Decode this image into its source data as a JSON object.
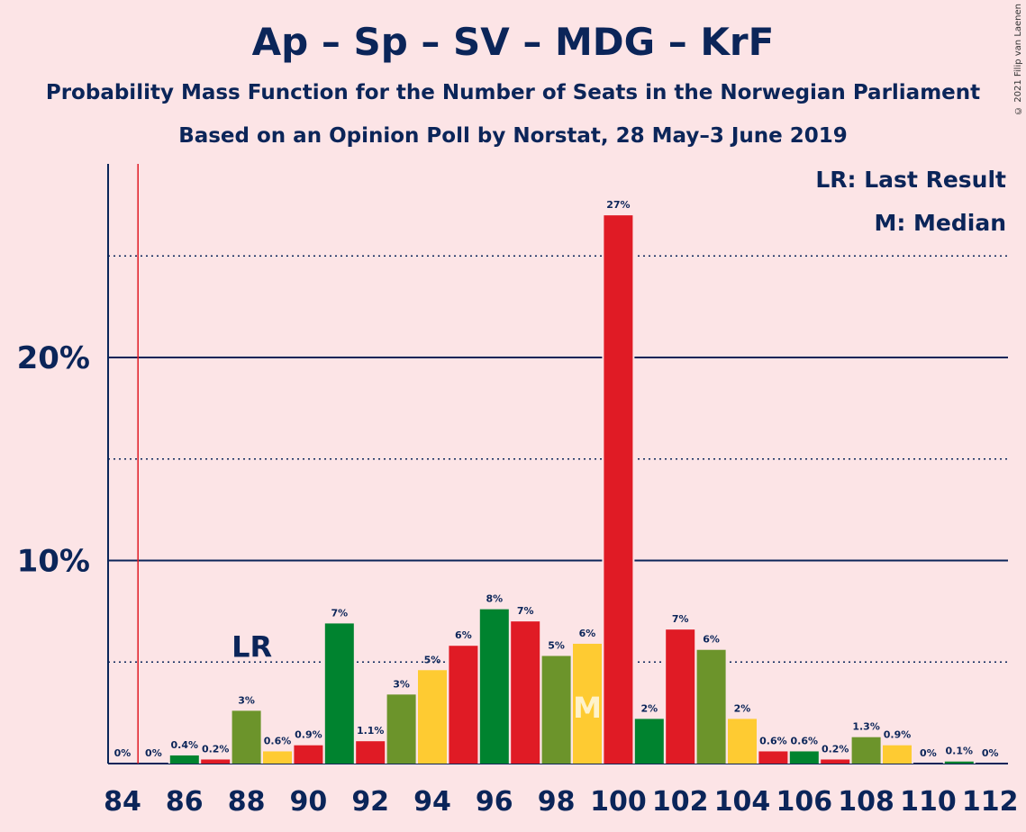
{
  "title": "Ap – Sp – SV – MDG – KrF",
  "subtitle": "Probability Mass Function for the Number of Seats in the Norwegian Parliament",
  "subtitle2": "Based on an Opinion Poll by Norstat, 28 May–3 June 2019",
  "copyright": "© 2021 Filip van Laenen",
  "legend": {
    "last_result": "LR: Last Result",
    "median": "M: Median"
  },
  "markers": {
    "last_result_label": "LR",
    "last_result_seat": 88,
    "median_label": "M",
    "median_seat": 99,
    "majority_line_seat": 84.5
  },
  "colors": {
    "Ap": "#e01b25",
    "Sp": "#00832f",
    "SV": "#6c942b",
    "MDG_KrF": "#fecb32",
    "axis": "#0b2559",
    "majority_line": "#e01b25",
    "background": "#fce4e6"
  },
  "chart_data": {
    "type": "bar",
    "x": [
      84,
      85,
      86,
      87,
      88,
      89,
      90,
      91,
      92,
      93,
      94,
      95,
      96,
      97,
      98,
      99,
      100,
      101,
      102,
      103,
      104,
      105,
      106,
      107,
      108,
      109,
      110,
      111,
      112
    ],
    "values": [
      0,
      0,
      0.4,
      0.2,
      2.6,
      0.6,
      0.9,
      6.9,
      1.1,
      3.4,
      4.6,
      5.8,
      7.6,
      7.0,
      5.3,
      5.9,
      27.0,
      2.2,
      6.6,
      5.6,
      2.2,
      0.6,
      0.6,
      0.2,
      1.3,
      0.9,
      0,
      0.1,
      0
    ],
    "labels": [
      "0%",
      "0%",
      "0.4%",
      "0.2%",
      "3%",
      "0.6%",
      "0.9%",
      "7%",
      "1.1%",
      "3%",
      "5%",
      "6%",
      "8%",
      "7%",
      "5%",
      "6%",
      "27%",
      "2%",
      "7%",
      "6%",
      "2%",
      "0.6%",
      "0.6%",
      "0.2%",
      "1.3%",
      "0.9%",
      "0%",
      "0.1%",
      "0%"
    ],
    "bar_colors": [
      "Ap",
      "Ap",
      "Sp",
      "Ap",
      "SV",
      "MDG_KrF",
      "Ap",
      "Sp",
      "Ap",
      "SV",
      "MDG_KrF",
      "Ap",
      "Sp",
      "Ap",
      "SV",
      "MDG_KrF",
      "Ap",
      "Sp",
      "Ap",
      "SV",
      "MDG_KrF",
      "Ap",
      "Sp",
      "Ap",
      "SV",
      "MDG_KrF",
      "Ap",
      "Sp",
      "Ap"
    ],
    "x_ticks": [
      84,
      86,
      88,
      90,
      92,
      94,
      96,
      98,
      100,
      102,
      104,
      106,
      108,
      110,
      112
    ],
    "y_ticks": [
      {
        "value": 10,
        "label": "10%"
      },
      {
        "value": 20,
        "label": "20%"
      }
    ],
    "y_minor_gridlines": [
      5,
      15,
      25
    ],
    "ylim": [
      0,
      29.5
    ],
    "xlabel": "",
    "ylabel": ""
  }
}
